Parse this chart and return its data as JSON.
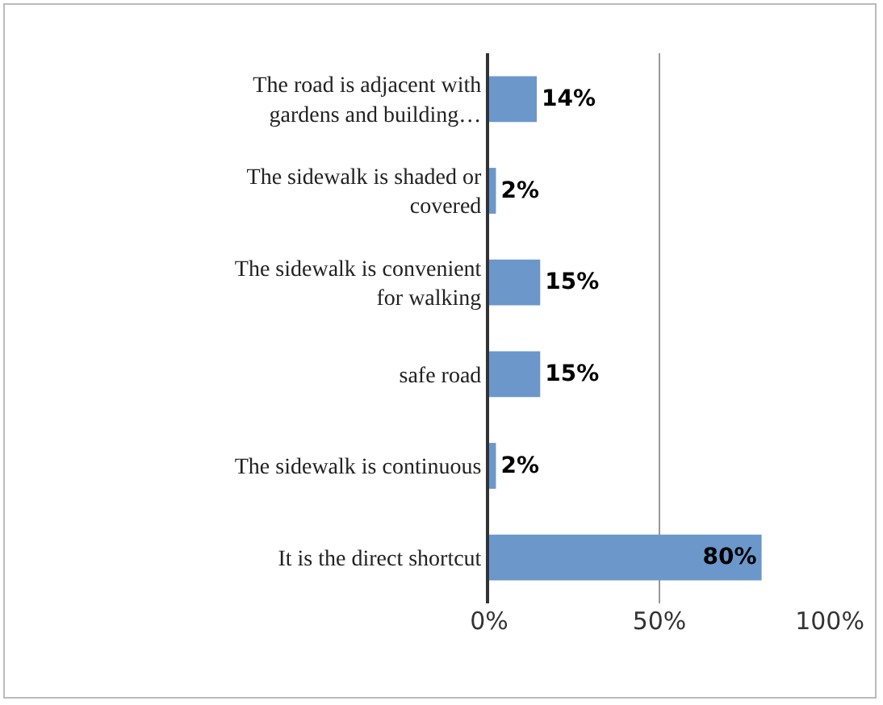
{
  "chart_data": {
    "type": "bar",
    "orientation": "horizontal",
    "categories": [
      "The road is adjacent with gardens and building…",
      "The sidewalk is shaded or covered",
      "The sidewalk is convenient for walking",
      "safe road",
      "The sidewalk is continuous",
      "It is the direct shortcut"
    ],
    "values": [
      14,
      2,
      15,
      15,
      2,
      80
    ],
    "value_labels": [
      "14%",
      "2%",
      "15%",
      "15%",
      "2%",
      "80%"
    ],
    "color": "#6b97cb",
    "xlim": [
      0,
      100
    ],
    "xticks": [
      {
        "value": 0,
        "label": "0%"
      },
      {
        "value": 50,
        "label": "50%"
      },
      {
        "value": 100,
        "label": "100%"
      }
    ],
    "grid": "x",
    "legend": false
  }
}
